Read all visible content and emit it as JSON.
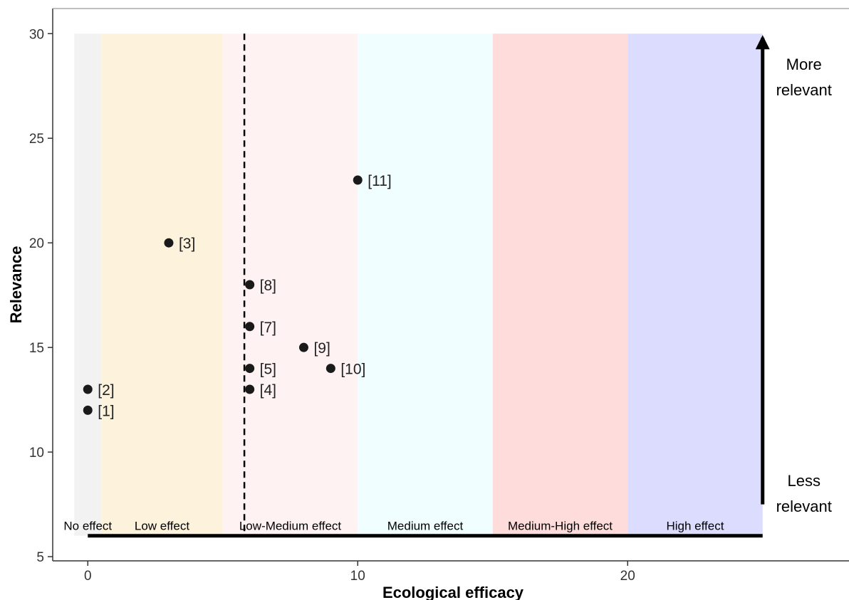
{
  "chart_data": {
    "type": "scatter",
    "title": "",
    "xlabel": "Ecological efficacy",
    "ylabel": "Relevance",
    "xlim": [
      -1.3,
      28.2
    ],
    "ylim": [
      4.8,
      31.2
    ],
    "x_ticks": [
      0,
      10,
      20
    ],
    "y_ticks": [
      5,
      10,
      15,
      20,
      25,
      30
    ],
    "grid": false,
    "points": [
      {
        "label": "[1]",
        "x": 0,
        "y": 12
      },
      {
        "label": "[2]",
        "x": 0,
        "y": 13
      },
      {
        "label": "[3]",
        "x": 3,
        "y": 20
      },
      {
        "label": "[4]",
        "x": 6,
        "y": 13
      },
      {
        "label": "[5]",
        "x": 6,
        "y": 14
      },
      {
        "label": "[7]",
        "x": 6,
        "y": 16
      },
      {
        "label": "[8]",
        "x": 6,
        "y": 18
      },
      {
        "label": "[9]",
        "x": 8,
        "y": 15
      },
      {
        "label": "[10]",
        "x": 9,
        "y": 14
      },
      {
        "label": "[11]",
        "x": 10,
        "y": 23
      }
    ],
    "bands": [
      {
        "label": "No effect",
        "x_start": -0.5,
        "x_end": 0.5,
        "color": "#f2f2f2"
      },
      {
        "label": "Low effect",
        "x_start": 0.5,
        "x_end": 5,
        "color": "#fdf2dc"
      },
      {
        "label": "Low-Medium effect",
        "x_start": 5,
        "x_end": 10,
        "color": "#fef2f3"
      },
      {
        "label": "Medium effect",
        "x_start": 10,
        "x_end": 15,
        "color": "#f1feff"
      },
      {
        "label": "Medium-High effect",
        "x_start": 15,
        "x_end": 20,
        "color": "#ffdcdc"
      },
      {
        "label": "High effect",
        "x_start": 20,
        "x_end": 25,
        "color": "#dcdcfe"
      }
    ],
    "band_y_range": [
      6,
      30
    ],
    "dashed_line_x": 5.8,
    "baseline": {
      "x_start": 0,
      "x_end": 25,
      "y": 6
    },
    "arrow": {
      "x": 25,
      "y_start": 7.5,
      "y_end": 30,
      "top_label": "More relevant",
      "bottom_label": "Less relevant"
    },
    "point_color": "#1a1a1a"
  }
}
